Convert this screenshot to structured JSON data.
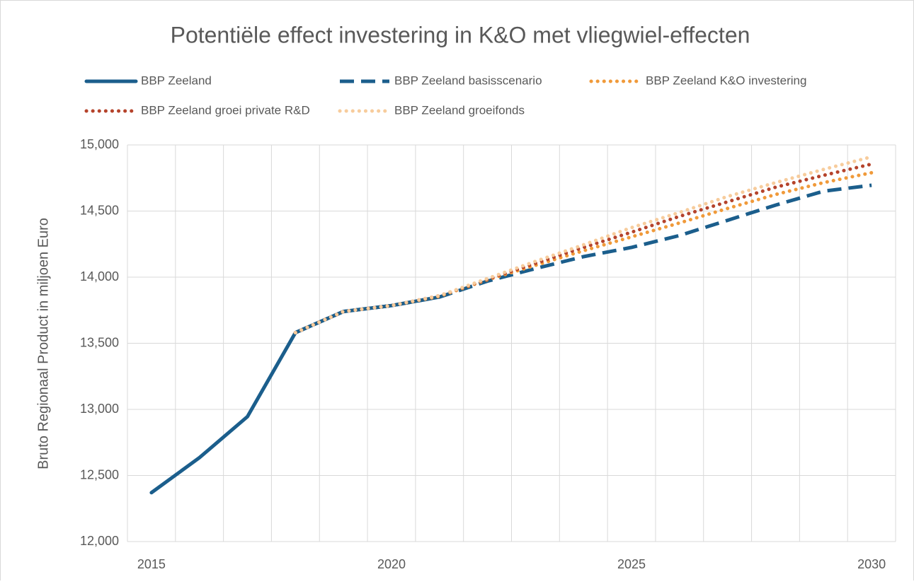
{
  "chart_data": {
    "type": "line",
    "title": "Potentiële effect investering in K&O met vliegwiel-effecten",
    "y_label": "Bruto Regionaal Product in miljoen Euro",
    "categories": [
      "2015",
      null,
      null,
      null,
      null,
      "2020",
      null,
      null,
      null,
      null,
      "2025",
      null,
      null,
      null,
      null,
      "2030"
    ],
    "ylim": [
      12000,
      15000
    ],
    "yticks": [
      {
        "value": 12000,
        "label": "12,000"
      },
      {
        "value": 12500,
        "label": "12,500"
      },
      {
        "value": 13000,
        "label": "13,000"
      },
      {
        "value": 13500,
        "label": "13,500"
      },
      {
        "value": 14000,
        "label": "14,000"
      },
      {
        "value": 14500,
        "label": "14,500"
      },
      {
        "value": 15000,
        "label": "15,000"
      }
    ],
    "grid": true,
    "legend": "top",
    "series": [
      {
        "name": "BBP Zeeland",
        "color": "#1b5e8c",
        "style": "solid",
        "values": [
          12370,
          12635,
          12945,
          13580,
          13740,
          13785,
          13850,
          null,
          null,
          null,
          null,
          null,
          null,
          null,
          null,
          null
        ]
      },
      {
        "name": "BBP Zeeland basisscenario",
        "color": "#1b5e8c",
        "style": "dashed",
        "values": [
          null,
          null,
          null,
          13580,
          13740,
          13785,
          13850,
          13970,
          14065,
          14155,
          14225,
          14315,
          14430,
          14545,
          14650,
          14695
        ]
      },
      {
        "name": "BBP Zeeland K&O investering",
        "color": "#f09a3a",
        "style": "dotted",
        "values": [
          null,
          null,
          null,
          13580,
          13740,
          13785,
          13855,
          13980,
          14090,
          14200,
          14305,
          14410,
          14520,
          14625,
          14715,
          14790
        ]
      },
      {
        "name": "BBP Zeeland groei private R&D",
        "color": "#b5432b",
        "style": "dotted",
        "values": [
          null,
          null,
          null,
          13580,
          13740,
          13785,
          13860,
          13985,
          14105,
          14225,
          14340,
          14460,
          14570,
          14680,
          14770,
          14855
        ]
      },
      {
        "name": "BBP Zeeland groeifonds",
        "color": "#f7cc9c",
        "style": "dotted",
        "values": [
          null,
          null,
          null,
          13580,
          13740,
          13785,
          13860,
          13990,
          14120,
          14245,
          14375,
          14490,
          14610,
          14715,
          14815,
          14910
        ]
      }
    ]
  }
}
